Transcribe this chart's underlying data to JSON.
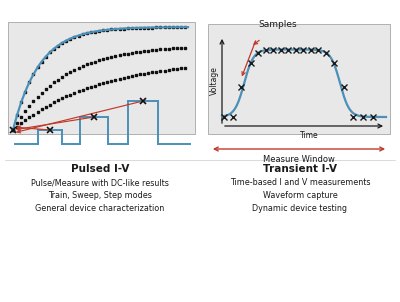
{
  "fig_bg": "#ffffff",
  "title_left": "Pulsed I-V",
  "desc_left": [
    "Pulse/Measure with DC-like results",
    "Train, Sweep, Step modes",
    "General device characterization"
  ],
  "title_right": "Transient I-V",
  "desc_right": [
    "Time-based I and V measurements",
    "Waveform capture",
    "Dynamic device testing"
  ],
  "blue": "#4a90b8",
  "red": "#c0392b",
  "dark": "#1a1a1a",
  "gray_box": "#e8e8e8",
  "label_samples": "Samples",
  "label_voltage": "Voltage",
  "label_time": "Time",
  "label_measure_window": "Measure Window"
}
